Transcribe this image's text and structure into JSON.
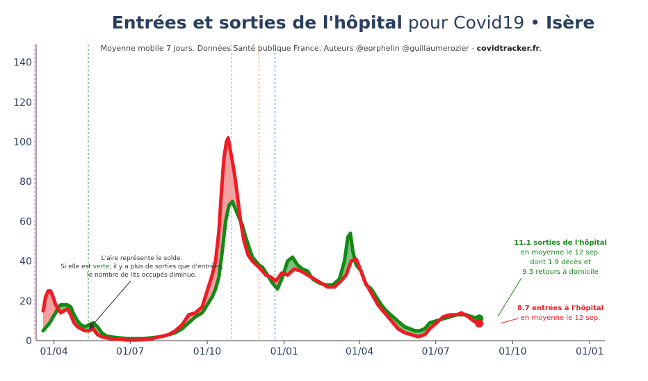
{
  "title": {
    "bold": "Entrées et sorties de l'hôpital",
    "mid": " pour Covid19 • ",
    "region": "Isère"
  },
  "subtitle": {
    "text": "Moyenne mobile 7 jours. Données Santé publique France. Auteurs @eorphelin @guillaumerozier - ",
    "site": "covidtracker.fr",
    "end": "."
  },
  "colors": {
    "entries": "#ee1c25",
    "exits": "#138a13",
    "fill_positive": "#f2a0a0",
    "fill_negative": "#7fc07f",
    "axis_text": "#2a3f5f"
  },
  "annotations": {
    "area_note_1": "L'aire représente le solde.",
    "area_note_2a": "Si elle est ",
    "area_note_2b": "verte",
    "area_note_2c": ", il y a plus de sorties que d'entrées,",
    "area_note_3": "le nombre de lits occupés diminue.",
    "exits_1": "11.1 sorties de l'hôpital",
    "exits_2": "en moyenne le 12 sep.",
    "exits_3": "dont 1.9 décès et",
    "exits_4": "9.3 retours à domicile",
    "entries_1": "8.7 entrées à l'hôpital",
    "entries_2": "en moyenne le 12 sep."
  },
  "chart_data": {
    "type": "line",
    "title": "Entrées et sorties de l'hôpital pour Covid19 • Isère",
    "subtitle": "Moyenne mobile 7 jours. Données Santé publique France. Auteurs @eorphelin @guillaumerozier - covidtracker.fr.",
    "x_ticks": [
      "01/04",
      "01/07",
      "01/10",
      "01/01",
      "01/04",
      "01/07",
      "01/10",
      "01/01"
    ],
    "y_ticks": [
      0,
      20,
      40,
      60,
      80,
      100,
      120,
      140
    ],
    "ylim": [
      0,
      145
    ],
    "x_axis_note": "Time axis in days since 2020-03-19; ticks at 01/04/2020 through 01/01/2022",
    "grid": false,
    "legend": "none",
    "vertical_lines": [
      {
        "day": -10,
        "color": "#e377c2"
      },
      {
        "day": 54,
        "color": "#2ca02c"
      },
      {
        "day": 225,
        "color": "#e377c2"
      },
      {
        "day": 258,
        "color": "#ff7f0e"
      },
      {
        "day": 277,
        "color": "#1f77b4"
      }
    ],
    "series": [
      {
        "name": "Entrées à l'hôpital",
        "color": "#ee1c25",
        "points": [
          [
            0,
            15
          ],
          [
            3,
            22
          ],
          [
            6,
            25
          ],
          [
            9,
            25
          ],
          [
            12,
            22
          ],
          [
            15,
            18
          ],
          [
            18,
            16
          ],
          [
            21,
            14
          ],
          [
            25,
            15
          ],
          [
            29,
            16
          ],
          [
            33,
            13
          ],
          [
            37,
            9
          ],
          [
            41,
            7
          ],
          [
            45,
            6
          ],
          [
            50,
            5
          ],
          [
            55,
            5
          ],
          [
            60,
            6
          ],
          [
            65,
            3
          ],
          [
            70,
            2
          ],
          [
            75,
            1.5
          ],
          [
            80,
            1
          ],
          [
            90,
            0.8
          ],
          [
            100,
            0.3
          ],
          [
            110,
            0.3
          ],
          [
            120,
            0.5
          ],
          [
            130,
            1
          ],
          [
            140,
            2
          ],
          [
            150,
            3
          ],
          [
            158,
            5
          ],
          [
            166,
            8
          ],
          [
            174,
            13
          ],
          [
            182,
            14
          ],
          [
            190,
            17
          ],
          [
            196,
            25
          ],
          [
            202,
            33
          ],
          [
            206,
            40
          ],
          [
            210,
            55
          ],
          [
            213,
            75
          ],
          [
            216,
            92
          ],
          [
            219,
            100
          ],
          [
            221,
            102
          ],
          [
            224,
            95
          ],
          [
            227,
            88
          ],
          [
            230,
            80
          ],
          [
            233,
            70
          ],
          [
            236,
            60
          ],
          [
            240,
            50
          ],
          [
            245,
            43
          ],
          [
            250,
            40
          ],
          [
            255,
            38
          ],
          [
            260,
            36
          ],
          [
            266,
            33
          ],
          [
            272,
            32
          ],
          [
            278,
            30
          ],
          [
            285,
            34
          ],
          [
            292,
            33
          ],
          [
            300,
            36
          ],
          [
            308,
            35
          ],
          [
            316,
            33
          ],
          [
            324,
            31
          ],
          [
            332,
            29
          ],
          [
            340,
            27
          ],
          [
            348,
            27
          ],
          [
            356,
            30
          ],
          [
            362,
            33
          ],
          [
            368,
            40
          ],
          [
            374,
            41
          ],
          [
            378,
            37
          ],
          [
            384,
            30
          ],
          [
            392,
            24
          ],
          [
            400,
            18
          ],
          [
            408,
            14
          ],
          [
            416,
            10
          ],
          [
            424,
            6
          ],
          [
            432,
            4
          ],
          [
            440,
            3
          ],
          [
            448,
            2
          ],
          [
            456,
            3
          ],
          [
            462,
            6
          ],
          [
            470,
            9
          ],
          [
            478,
            12
          ],
          [
            486,
            13
          ],
          [
            494,
            13
          ],
          [
            500,
            14
          ],
          [
            508,
            12
          ],
          [
            514,
            10
          ],
          [
            518,
            9
          ],
          [
            521,
            8.7
          ]
        ]
      },
      {
        "name": "Sorties de l'hôpital",
        "color": "#138a13",
        "points": [
          [
            0,
            5
          ],
          [
            4,
            7
          ],
          [
            8,
            9
          ],
          [
            12,
            12
          ],
          [
            15,
            14
          ],
          [
            18,
            17
          ],
          [
            21,
            18
          ],
          [
            25,
            18
          ],
          [
            29,
            18
          ],
          [
            33,
            17
          ],
          [
            37,
            13
          ],
          [
            41,
            10
          ],
          [
            45,
            8
          ],
          [
            50,
            7
          ],
          [
            55,
            8
          ],
          [
            60,
            9
          ],
          [
            65,
            7
          ],
          [
            70,
            4
          ],
          [
            75,
            2.5
          ],
          [
            80,
            2
          ],
          [
            90,
            1.5
          ],
          [
            100,
            1
          ],
          [
            110,
            1
          ],
          [
            120,
            1
          ],
          [
            130,
            1.5
          ],
          [
            140,
            2
          ],
          [
            150,
            3
          ],
          [
            158,
            4
          ],
          [
            166,
            6
          ],
          [
            174,
            9
          ],
          [
            182,
            12
          ],
          [
            190,
            14
          ],
          [
            196,
            18
          ],
          [
            202,
            22
          ],
          [
            206,
            26
          ],
          [
            210,
            32
          ],
          [
            214,
            45
          ],
          [
            218,
            60
          ],
          [
            222,
            68
          ],
          [
            226,
            70
          ],
          [
            230,
            66
          ],
          [
            234,
            62
          ],
          [
            238,
            58
          ],
          [
            242,
            52
          ],
          [
            246,
            47
          ],
          [
            250,
            42
          ],
          [
            254,
            40
          ],
          [
            258,
            38
          ],
          [
            262,
            37
          ],
          [
            268,
            33
          ],
          [
            274,
            29
          ],
          [
            280,
            26
          ],
          [
            286,
            32
          ],
          [
            292,
            40
          ],
          [
            298,
            42
          ],
          [
            304,
            38
          ],
          [
            310,
            36
          ],
          [
            316,
            35
          ],
          [
            322,
            31
          ],
          [
            330,
            29
          ],
          [
            338,
            28
          ],
          [
            346,
            28
          ],
          [
            354,
            31
          ],
          [
            360,
            40
          ],
          [
            364,
            52
          ],
          [
            367,
            54
          ],
          [
            370,
            45
          ],
          [
            374,
            38
          ],
          [
            380,
            35
          ],
          [
            386,
            28
          ],
          [
            392,
            26
          ],
          [
            398,
            22
          ],
          [
            404,
            18
          ],
          [
            410,
            15
          ],
          [
            418,
            12
          ],
          [
            426,
            9
          ],
          [
            432,
            7
          ],
          [
            438,
            6
          ],
          [
            444,
            5
          ],
          [
            450,
            5
          ],
          [
            456,
            6
          ],
          [
            462,
            9
          ],
          [
            470,
            10
          ],
          [
            478,
            11
          ],
          [
            486,
            12
          ],
          [
            494,
            13
          ],
          [
            500,
            13
          ],
          [
            506,
            13
          ],
          [
            512,
            12
          ],
          [
            518,
            11.5
          ],
          [
            521,
            11.1
          ]
        ]
      }
    ],
    "last_values": {
      "date": "12 sep.",
      "sorties": 11.1,
      "deces": 1.9,
      "retours_domicile": 9.3,
      "entrees": 8.7
    }
  }
}
